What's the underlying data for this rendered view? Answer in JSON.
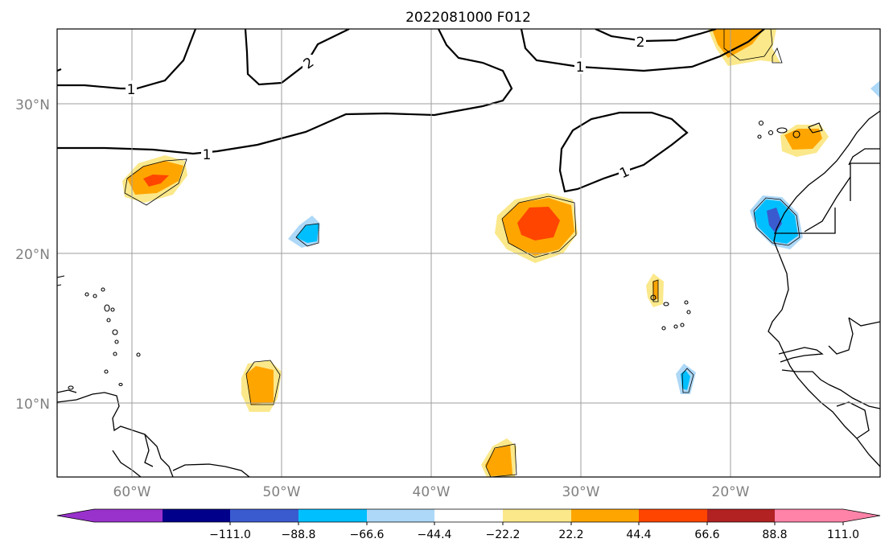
{
  "title": "2022081000 F012",
  "latitude_labels": [
    "30°N",
    "20°N",
    "10°N"
  ],
  "longitude_labels": [
    "60°W",
    "50°W",
    "40°W",
    "30°W",
    "20°W"
  ],
  "contour_labels": [
    "1",
    "2",
    "1",
    "1",
    "2",
    "1"
  ],
  "colorbar": {
    "tick_labels": [
      "−111.0",
      "−88.8",
      "−66.6",
      "−44.4",
      "−22.2",
      "22.2",
      "44.4",
      "66.6",
      "88.8",
      "111.0"
    ],
    "colors": [
      "#9932cc",
      "#00008b",
      "#3a5bd0",
      "#00bfff",
      "#add8f7",
      "#ffffff",
      "#fbe88a",
      "#ffa500",
      "#ff4500",
      "#b22222",
      "#ff82a8"
    ]
  }
}
